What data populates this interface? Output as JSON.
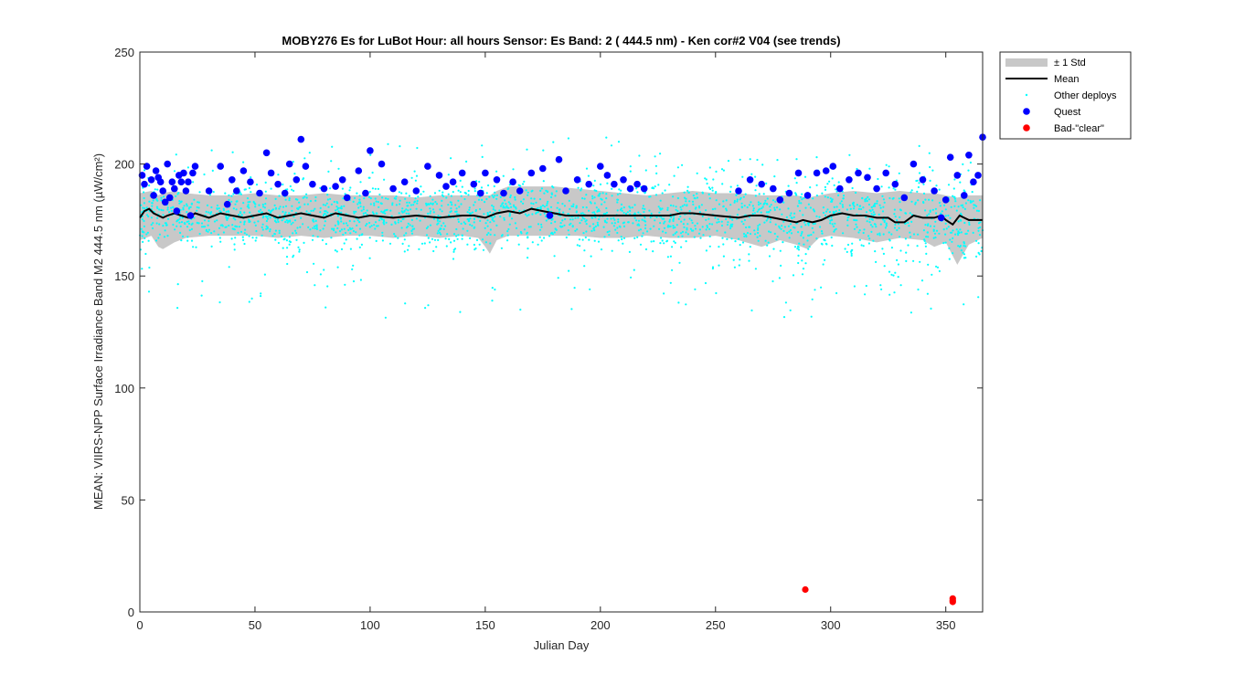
{
  "chart_data": {
    "type": "scatter",
    "title": "MOBY276   Es for LuBot  Hour: all hours  Sensor: Es Band: 2 ( 444.5 nm)  - Ken cor#2 V04 (see trends)",
    "xlabel": "Julian Day",
    "ylabel": "MEAN: VIIRS-NPP Surface Irradiance Band M2 444.5 nm (µW/cm²)",
    "xlim": [
      0,
      366
    ],
    "ylim": [
      0,
      250
    ],
    "xticks": [
      0,
      50,
      100,
      150,
      200,
      250,
      300,
      350
    ],
    "yticks": [
      0,
      50,
      100,
      150,
      200,
      250
    ],
    "xtick_labels": [
      "0",
      "50",
      "100",
      "150",
      "200",
      "250",
      "300",
      "350"
    ],
    "ytick_labels": [
      "0",
      "50",
      "100",
      "150",
      "200",
      "250"
    ],
    "grid": false,
    "legend_position": "outside-top-right",
    "legend": [
      {
        "label": "± 1 Std",
        "kind": "band",
        "color": "#c8c8c8"
      },
      {
        "label": "Mean",
        "kind": "line",
        "color": "#000000"
      },
      {
        "label": "Other deploys",
        "kind": "dot",
        "color": "#00ffff"
      },
      {
        "label": "Quest",
        "kind": "marker",
        "color": "#0000ff"
      },
      {
        "label": "Bad-\"clear\"",
        "kind": "marker",
        "color": "#ff0000"
      }
    ],
    "series": [
      {
        "name": "Mean",
        "color": "#000000",
        "x": [
          0,
          2,
          4,
          6,
          8,
          10,
          12,
          15,
          18,
          21,
          24,
          27,
          30,
          35,
          40,
          45,
          50,
          55,
          60,
          65,
          70,
          75,
          80,
          85,
          90,
          95,
          100,
          110,
          120,
          130,
          140,
          145,
          150,
          155,
          160,
          165,
          170,
          175,
          180,
          185,
          190,
          200,
          210,
          220,
          230,
          235,
          240,
          250,
          260,
          265,
          270,
          275,
          280,
          285,
          288,
          292,
          296,
          300,
          305,
          310,
          315,
          320,
          325,
          328,
          332,
          336,
          340,
          345,
          348,
          350,
          353,
          356,
          360,
          366
        ],
        "y": [
          176,
          179,
          180,
          178,
          177,
          176,
          177,
          178,
          177,
          176,
          178,
          177,
          176,
          178,
          177,
          176,
          177,
          178,
          176,
          177,
          178,
          177,
          176,
          178,
          177,
          176,
          177,
          176,
          177,
          176,
          177,
          177,
          176,
          178,
          179,
          178,
          180,
          179,
          178,
          177,
          177,
          177,
          177,
          177,
          177,
          178,
          178,
          177,
          176,
          177,
          177,
          176,
          175,
          174,
          175,
          174,
          175,
          177,
          178,
          177,
          177,
          176,
          176,
          174,
          174,
          177,
          176,
          176,
          177,
          175,
          173,
          177,
          175,
          175
        ]
      },
      {
        "name": "± 1 Std",
        "color": "#c8c8c8",
        "x": [
          0,
          5,
          8,
          10,
          15,
          20,
          30,
          40,
          50,
          60,
          70,
          80,
          90,
          100,
          110,
          120,
          130,
          140,
          147,
          150,
          152,
          155,
          160,
          170,
          180,
          190,
          200,
          210,
          220,
          230,
          240,
          250,
          260,
          270,
          278,
          285,
          290,
          295,
          300,
          310,
          320,
          330,
          340,
          345,
          350,
          355,
          360,
          366
        ],
        "upper": [
          187,
          188,
          186,
          187,
          188,
          187,
          186,
          186,
          187,
          186,
          186,
          187,
          186,
          186,
          186,
          185,
          186,
          186,
          186,
          186,
          186,
          188,
          190,
          190,
          190,
          189,
          188,
          187,
          186,
          187,
          188,
          187,
          187,
          186,
          186,
          186,
          185,
          186,
          187,
          188,
          187,
          188,
          187,
          187,
          186,
          185,
          186,
          186
        ],
        "lower": [
          166,
          168,
          163,
          162,
          165,
          167,
          168,
          168,
          168,
          167,
          168,
          167,
          168,
          168,
          167,
          168,
          167,
          168,
          167,
          163,
          160,
          166,
          168,
          168,
          168,
          168,
          167,
          167,
          168,
          167,
          167,
          168,
          166,
          163,
          166,
          164,
          162,
          167,
          168,
          167,
          165,
          167,
          166,
          163,
          165,
          155,
          164,
          167
        ]
      },
      {
        "name": "Quest",
        "color": "#0000ff",
        "x": [
          1,
          2,
          3,
          5,
          6,
          7,
          8,
          9,
          10,
          11,
          12,
          13,
          14,
          15,
          16,
          17,
          18,
          19,
          20,
          21,
          22,
          23,
          24,
          30,
          35,
          38,
          40,
          42,
          45,
          48,
          52,
          55,
          57,
          60,
          63,
          65,
          68,
          70,
          72,
          75,
          80,
          85,
          88,
          90,
          95,
          98,
          100,
          105,
          110,
          115,
          120,
          125,
          130,
          133,
          136,
          140,
          145,
          148,
          150,
          155,
          158,
          162,
          165,
          170,
          175,
          178,
          182,
          185,
          190,
          195,
          200,
          203,
          206,
          210,
          213,
          216,
          219,
          260,
          265,
          270,
          275,
          278,
          282,
          286,
          290,
          294,
          298,
          301,
          304,
          308,
          312,
          316,
          320,
          324,
          328,
          332,
          336,
          340,
          345,
          348,
          350,
          352,
          355,
          358,
          360,
          362,
          364,
          366
        ],
        "y": [
          195,
          191,
          199,
          193,
          186,
          197,
          194,
          192,
          188,
          183,
          200,
          185,
          192,
          189,
          179,
          195,
          192,
          196,
          188,
          192,
          177,
          196,
          199,
          188,
          199,
          182,
          193,
          188,
          197,
          192,
          187,
          205,
          196,
          191,
          187,
          200,
          193,
          211,
          199,
          191,
          189,
          190,
          193,
          185,
          197,
          187,
          206,
          200,
          189,
          192,
          188,
          199,
          195,
          190,
          192,
          196,
          191,
          187,
          196,
          193,
          187,
          192,
          188,
          196,
          198,
          177,
          202,
          188,
          193,
          191,
          199,
          195,
          191,
          193,
          189,
          191,
          189,
          188,
          193,
          191,
          189,
          184,
          187,
          196,
          186,
          196,
          197,
          199,
          189,
          193,
          196,
          194,
          189,
          196,
          191,
          185,
          200,
          193,
          188,
          176,
          184,
          203,
          195,
          186,
          204,
          192,
          195,
          212
        ]
      },
      {
        "name": "Bad-\"clear\"",
        "color": "#ff0000",
        "x": [
          289,
          353,
          353,
          353
        ],
        "y": [
          10,
          6,
          5,
          4.5
        ]
      }
    ],
    "other_deploys_note_count": 2400
  }
}
